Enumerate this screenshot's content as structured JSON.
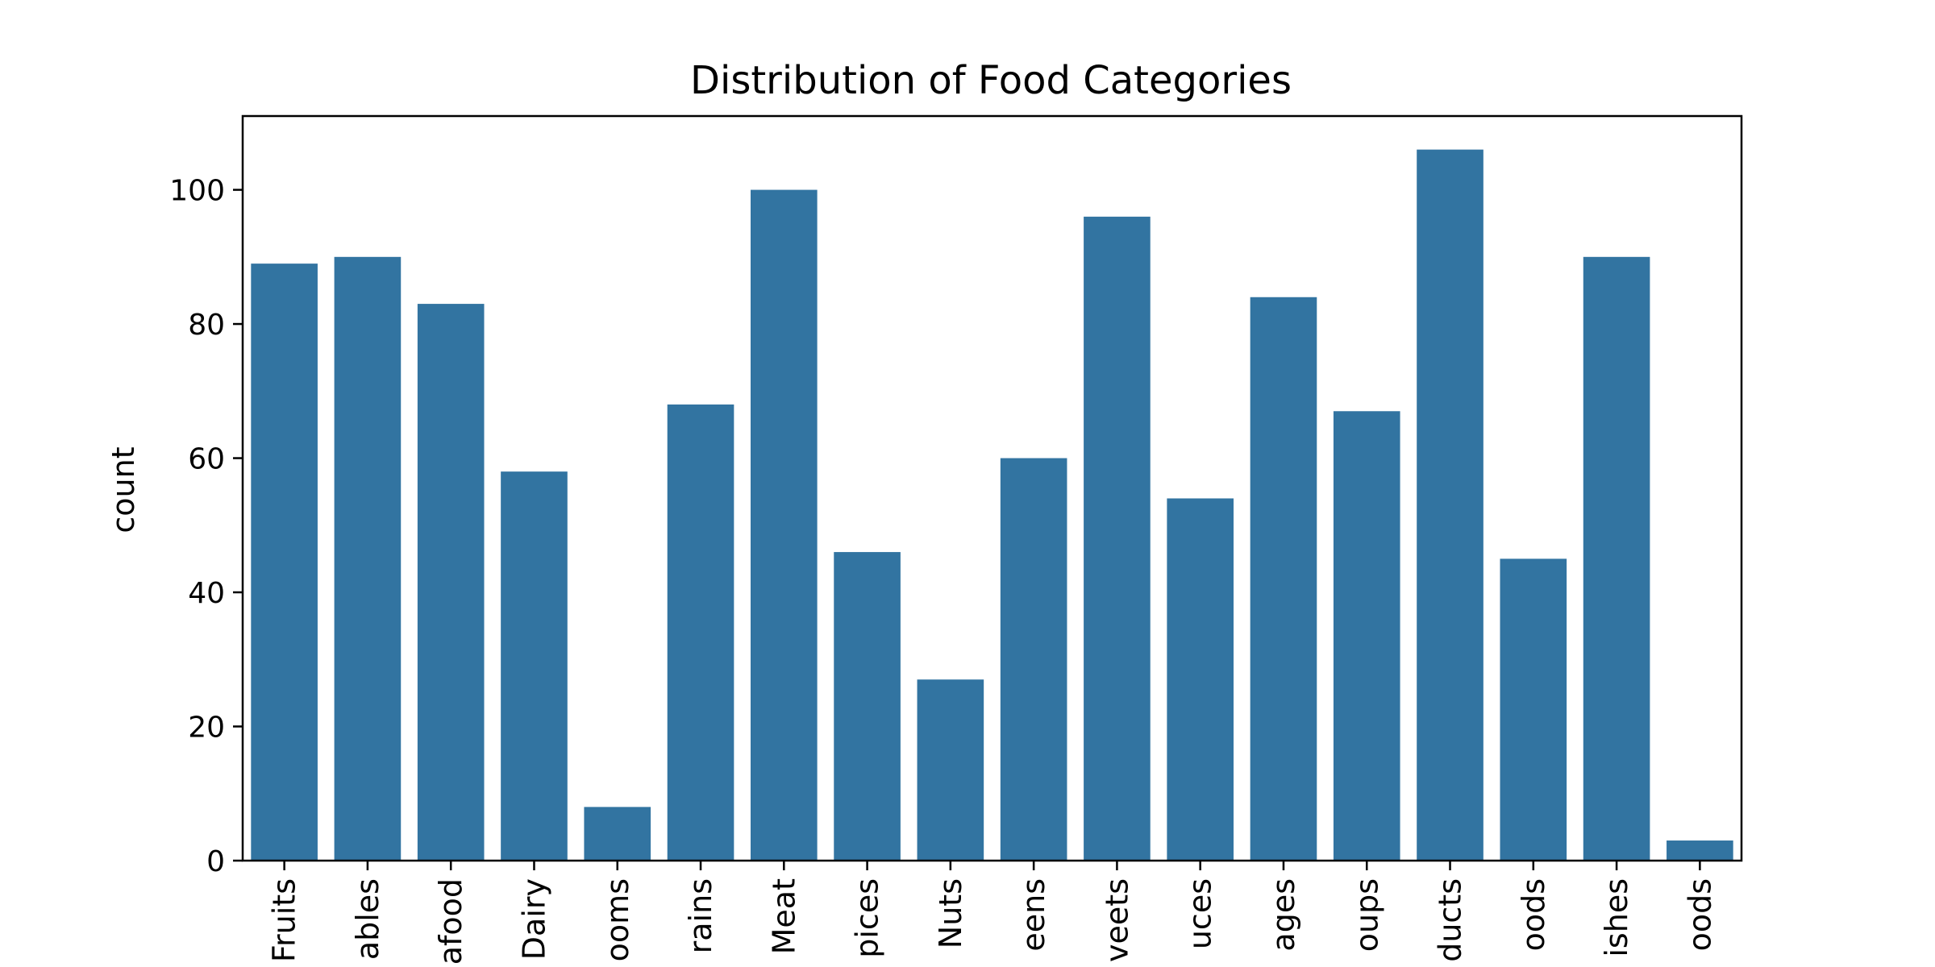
{
  "chart_data": {
    "type": "bar",
    "title": "Distribution of Food Categories",
    "xlabel": "",
    "ylabel": "count",
    "ylim": [
      0,
      111
    ],
    "yticks": [
      0,
      20,
      40,
      60,
      80,
      100
    ],
    "grid": false,
    "bar_color": "#3274a1",
    "categories": [
      "Fruits",
      "Vegetables",
      "Seafood",
      "Dairy",
      "Mushrooms",
      "Grains",
      "Meat",
      "Spices",
      "Nuts",
      "Greens",
      "Sweets",
      "Sauces",
      "Beverages",
      "Soups",
      "Products",
      "Foods",
      "Dishes",
      "Foods"
    ],
    "category_labels_visible": [
      "Fruits",
      "ables",
      "afood",
      "Dairy",
      "ooms",
      "rains",
      "Meat",
      "pices",
      "Nuts",
      "eens",
      "veets",
      "uces",
      "ages",
      "oups",
      "ducts",
      "oods",
      "ishes",
      "oods"
    ],
    "values": [
      89,
      90,
      83,
      58,
      8,
      68,
      100,
      46,
      27,
      60,
      96,
      54,
      84,
      67,
      106,
      45,
      90,
      3
    ]
  }
}
